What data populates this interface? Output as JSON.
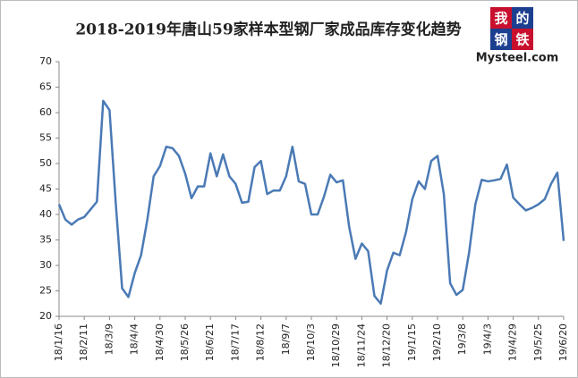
{
  "chart_data": {
    "type": "line",
    "title": "2018-2019年唐山59家样本型钢厂家成品库存变化趋势",
    "logo": {
      "chars": [
        "我",
        "的",
        "钢",
        "铁"
      ],
      "site": "Mysteel.com"
    },
    "color": "#4a7ab5",
    "categories": [
      "18/1/16",
      null,
      null,
      null,
      "18/2/11",
      null,
      null,
      null,
      "18/3/9",
      null,
      null,
      null,
      "18/4/4",
      null,
      null,
      null,
      "18/4/30",
      null,
      null,
      null,
      "18/5/26",
      null,
      null,
      null,
      "18/6/21",
      null,
      null,
      null,
      "18/7/17",
      null,
      null,
      null,
      "18/8/12",
      null,
      null,
      null,
      "18/9/7",
      null,
      null,
      null,
      "18/10/3",
      null,
      null,
      null,
      "18/10/29",
      null,
      null,
      null,
      "18/11/24",
      null,
      null,
      null,
      "18/12/20",
      null,
      null,
      null,
      "19/1/15",
      null,
      null,
      null,
      "19/2/10",
      null,
      null,
      null,
      "19/3/8",
      null,
      null,
      null,
      "19/4/3",
      null,
      null,
      null,
      "19/4/29",
      null,
      null,
      null,
      "19/5/25",
      null,
      null,
      null,
      "19/6/20"
    ],
    "values": [
      42,
      39,
      38,
      39,
      39.5,
      41,
      42.5,
      62.3,
      60.5,
      42,
      25.5,
      23.8,
      28.5,
      32,
      39,
      47.5,
      49.5,
      53.3,
      53,
      51.5,
      48,
      43.2,
      45.5,
      45.5,
      52,
      47.5,
      51.8,
      47.5,
      46,
      42.3,
      42.5,
      49.3,
      50.5,
      44,
      44.7,
      44.7,
      47.5,
      53.3,
      46.5,
      46,
      40,
      40,
      43.5,
      47.8,
      46.3,
      46.7,
      37.5,
      31.3,
      34.3,
      32.8,
      24,
      22.5,
      29,
      32.5,
      32,
      36.5,
      43,
      46.5,
      45,
      50.5,
      51.5,
      44,
      26.5,
      24.2,
      25.2,
      32.5,
      42,
      46.8,
      46.5,
      46.7,
      47,
      49.8,
      43.3,
      42,
      40.8,
      41.3,
      42,
      43,
      46,
      48.2,
      34.8
    ],
    "ylim": [
      20,
      70
    ],
    "yticks": [
      20,
      25,
      30,
      35,
      40,
      45,
      50,
      55,
      60,
      65,
      70
    ],
    "grid": false
  }
}
